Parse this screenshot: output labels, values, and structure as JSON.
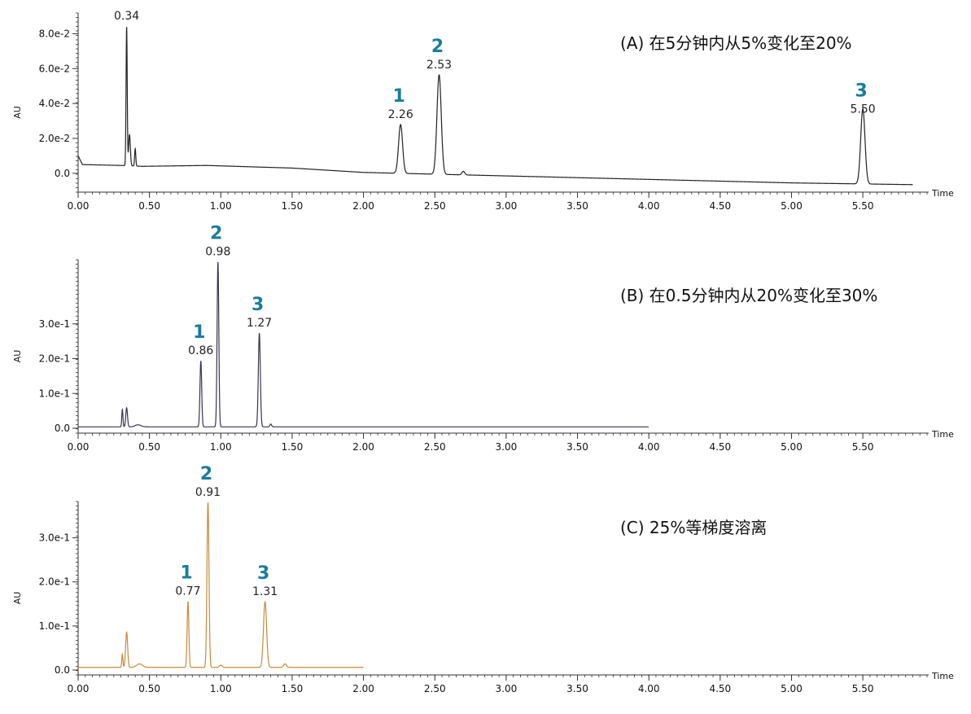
{
  "chart_data": [
    {
      "type": "line",
      "title": "(A) 在5分钟内从5%变化至20%",
      "xlabel": "Time",
      "ylabel": "AU",
      "xlim": [
        0,
        5.95
      ],
      "ylim": [
        -0.008,
        0.09
      ],
      "xticks": [
        "0.00",
        "0.50",
        "1.00",
        "1.50",
        "2.00",
        "2.50",
        "3.00",
        "3.50",
        "4.00",
        "4.50",
        "5.00",
        "5.50"
      ],
      "yticks": [
        {
          "value": 0.0,
          "label": "0.0"
        },
        {
          "value": 0.02,
          "label": "2.0e-2"
        },
        {
          "value": 0.04,
          "label": "4.0e-2"
        },
        {
          "value": 0.06,
          "label": "6.0e-2"
        },
        {
          "value": 0.08,
          "label": "8.0e-2"
        }
      ],
      "color": "#222222",
      "x_end": 5.85,
      "baseline": [
        [
          0,
          0.01
        ],
        [
          0.03,
          0.005
        ],
        [
          0.3,
          0.0045
        ],
        [
          0.45,
          0.004
        ],
        [
          0.9,
          0.0045
        ],
        [
          1.5,
          0.003
        ],
        [
          2.0,
          0.0005
        ],
        [
          2.5,
          -0.0005
        ],
        [
          3.0,
          -0.0015
        ],
        [
          3.5,
          -0.0025
        ],
        [
          4.0,
          -0.0035
        ],
        [
          4.5,
          -0.0045
        ],
        [
          5.0,
          -0.0055
        ],
        [
          5.85,
          -0.0065
        ]
      ],
      "peaks": [
        {
          "t": 0.34,
          "h": 0.08,
          "w": 0.004
        },
        {
          "t": 0.36,
          "h": 0.018,
          "w": 0.006
        },
        {
          "t": 0.4,
          "h": 0.01,
          "w": 0.004
        },
        {
          "t": 2.26,
          "h": 0.028,
          "w": 0.014
        },
        {
          "t": 2.53,
          "h": 0.057,
          "w": 0.015
        },
        {
          "t": 2.7,
          "h": 0.002,
          "w": 0.01
        },
        {
          "t": 5.5,
          "h": 0.043,
          "w": 0.015
        }
      ],
      "labels": [
        {
          "id": "",
          "time": "0.34",
          "t": 0.34,
          "y": 0.08
        },
        {
          "id": "1",
          "time": "2.26",
          "t": 2.26,
          "y": 0.028
        },
        {
          "id": "2",
          "time": "2.53",
          "t": 2.53,
          "y": 0.057
        },
        {
          "id": "3",
          "time": "5.50",
          "t": 5.5,
          "y": 0.037
        }
      ]
    },
    {
      "type": "line",
      "title": "(B) 在0.5分钟内从20%变化至30%",
      "xlabel": "Time",
      "ylabel": "AU",
      "xlim": [
        0,
        5.95
      ],
      "ylim": [
        0,
        0.475
      ],
      "xticks": [
        "0.00",
        "0.50",
        "1.00",
        "1.50",
        "2.00",
        "2.50",
        "3.00",
        "3.50",
        "4.00",
        "4.50",
        "5.00",
        "5.50"
      ],
      "yticks": [
        {
          "value": 0.0,
          "label": "0.0"
        },
        {
          "value": 0.1,
          "label": "1.0e-1"
        },
        {
          "value": 0.2,
          "label": "2.0e-1"
        },
        {
          "value": 0.3,
          "label": "3.0e-1"
        }
      ],
      "color": "#3b3350",
      "x_end": 4.0,
      "baseline": [
        [
          0,
          0.004
        ],
        [
          4.0,
          0.004
        ]
      ],
      "peaks": [
        {
          "t": 0.31,
          "h": 0.05,
          "w": 0.004
        },
        {
          "t": 0.34,
          "h": 0.055,
          "w": 0.006
        },
        {
          "t": 0.42,
          "h": 0.006,
          "w": 0.02
        },
        {
          "t": 0.86,
          "h": 0.19,
          "w": 0.006
        },
        {
          "t": 0.98,
          "h": 0.475,
          "w": 0.006
        },
        {
          "t": 1.27,
          "h": 0.27,
          "w": 0.007
        },
        {
          "t": 1.35,
          "h": 0.008,
          "w": 0.006
        }
      ],
      "labels": [
        {
          "id": "1",
          "time": "0.86",
          "t": 0.86,
          "y": 0.19
        },
        {
          "id": "2",
          "time": "0.98",
          "t": 0.98,
          "y": 0.475
        },
        {
          "id": "3",
          "time": "1.27",
          "t": 1.27,
          "y": 0.27
        }
      ]
    },
    {
      "type": "line",
      "title": "(C) 25%等梯度溶离",
      "xlabel": "Time",
      "ylabel": "AU",
      "xlim": [
        0,
        5.95
      ],
      "ylim": [
        0,
        0.375
      ],
      "xticks": [
        "0.00",
        "0.50",
        "1.00",
        "1.50",
        "2.00",
        "2.50",
        "3.00",
        "3.50",
        "4.00",
        "4.50",
        "5.00",
        "5.50"
      ],
      "yticks": [
        {
          "value": 0.0,
          "label": "0.0"
        },
        {
          "value": 0.1,
          "label": "1.0e-1"
        },
        {
          "value": 0.2,
          "label": "2.0e-1"
        },
        {
          "value": 0.3,
          "label": "3.0e-1"
        }
      ],
      "color": "#c98a3a",
      "x_end": 2.0,
      "baseline": [
        [
          0,
          0.006
        ],
        [
          2.0,
          0.006
        ]
      ],
      "peaks": [
        {
          "t": 0.31,
          "h": 0.03,
          "w": 0.004
        },
        {
          "t": 0.34,
          "h": 0.08,
          "w": 0.007
        },
        {
          "t": 0.43,
          "h": 0.008,
          "w": 0.02
        },
        {
          "t": 0.77,
          "h": 0.15,
          "w": 0.006
        },
        {
          "t": 0.91,
          "h": 0.375,
          "w": 0.007
        },
        {
          "t": 1.0,
          "h": 0.005,
          "w": 0.01
        },
        {
          "t": 1.31,
          "h": 0.149,
          "w": 0.011
        },
        {
          "t": 1.45,
          "h": 0.008,
          "w": 0.01
        }
      ],
      "labels": [
        {
          "id": "1",
          "time": "0.77",
          "t": 0.77,
          "y": 0.15
        },
        {
          "id": "2",
          "time": "0.91",
          "t": 0.91,
          "y": 0.375
        },
        {
          "id": "3",
          "time": "1.31",
          "t": 1.31,
          "y": 0.149
        }
      ]
    }
  ]
}
